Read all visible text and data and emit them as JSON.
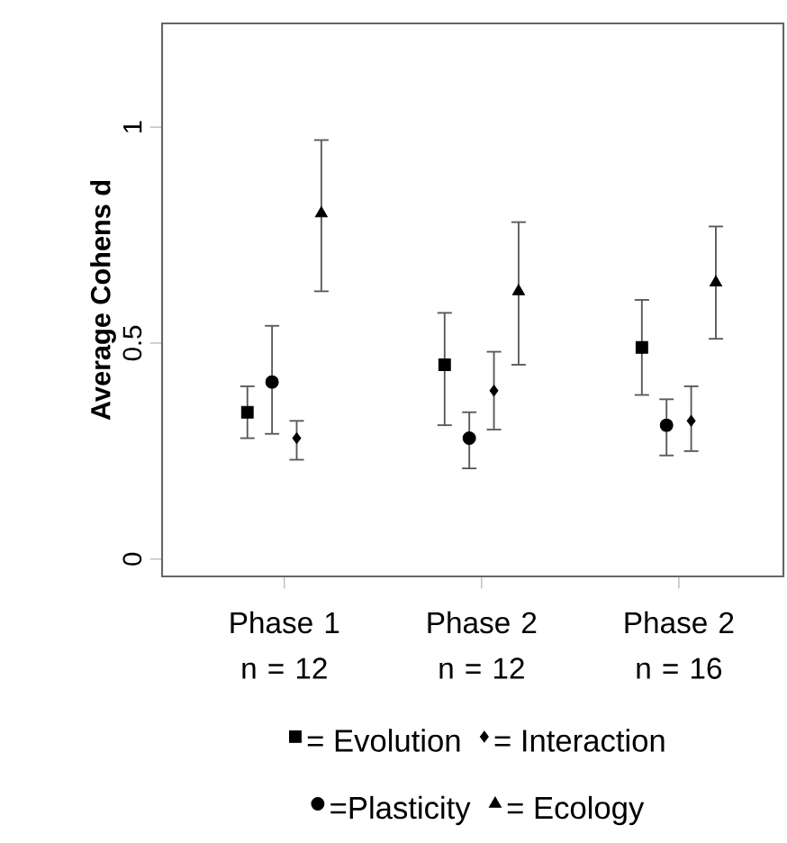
{
  "chart_data": {
    "type": "scatter",
    "ylabel": "Average Cohens d",
    "categories": [
      "Phase 1 n = 12",
      "Phase 2 n = 12",
      "Phase 2 n = 16"
    ],
    "ylim": [
      -0.04,
      1.24
    ],
    "yticks": [
      0,
      0.5,
      1
    ],
    "legend": "bottom",
    "series": [
      {
        "name": "= Evolution",
        "color": "#000000",
        "marker": "square",
        "values": [
          0.34,
          0.45,
          0.49
        ],
        "errors": [
          [
            0.28,
            0.4
          ],
          [
            0.31,
            0.57
          ],
          [
            0.38,
            0.6
          ]
        ]
      },
      {
        "name": "=Plasticity",
        "color": "#000000",
        "marker": "circle",
        "values": [
          0.41,
          0.28,
          0.31
        ],
        "errors": [
          [
            0.29,
            0.54
          ],
          [
            0.21,
            0.34
          ],
          [
            0.24,
            0.37
          ]
        ]
      },
      {
        "name": "= Interaction",
        "color": "#000000",
        "marker": "diamond",
        "values": [
          0.28,
          0.39,
          0.32
        ],
        "errors": [
          [
            0.23,
            0.32
          ],
          [
            0.3,
            0.48
          ],
          [
            0.25,
            0.4
          ]
        ]
      },
      {
        "name": "= Ecology",
        "color": "#000000",
        "marker": "triangle",
        "values": [
          0.8,
          0.62,
          0.64
        ],
        "errors": [
          [
            0.62,
            0.97
          ],
          [
            0.45,
            0.78
          ],
          [
            0.51,
            0.77
          ]
        ]
      }
    ]
  }
}
